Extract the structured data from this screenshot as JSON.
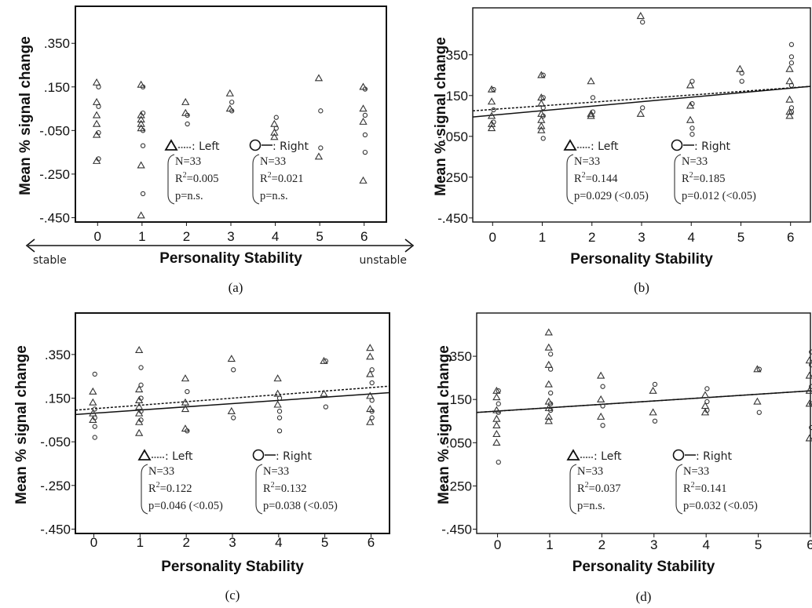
{
  "chart_data": [
    {
      "type": "scatter",
      "panel_label": "(a)",
      "xlabel": "Personality Stability",
      "ylabel": "Mean % signal change",
      "x_ticks": [
        "0",
        "1",
        "2",
        "3",
        "4",
        "5",
        "6"
      ],
      "y_ticks": [
        ".350",
        ".150",
        "-.050",
        "-.250",
        "-.450"
      ],
      "ylim": [
        -0.47,
        0.52
      ],
      "xlim": [
        -0.5,
        6.5
      ],
      "x_end_labels": {
        "left": "stable",
        "right": "unstable"
      },
      "double_arrow_x_axis": true,
      "legend": {
        "left": {
          "title": ": Left",
          "n": "N=33",
          "r2": "0.005",
          "p": "p=n.s."
        },
        "right": {
          "title": ": Right",
          "n": "N=33",
          "r2": "0.021",
          "p": "p=n.s."
        }
      },
      "series": [
        {
          "name": "Left",
          "marker": "triangle",
          "line": "dotted",
          "points": [
            [
              0,
              0.17
            ],
            [
              0,
              0.08
            ],
            [
              0,
              0.02
            ],
            [
              0,
              -0.02
            ],
            [
              0,
              -0.07
            ],
            [
              0,
              -0.19
            ],
            [
              1,
              0.16
            ],
            [
              1,
              0.02
            ],
            [
              1,
              0.0
            ],
            [
              1,
              -0.02
            ],
            [
              1,
              -0.04
            ],
            [
              1,
              -0.21
            ],
            [
              1,
              -0.44
            ],
            [
              2,
              0.08
            ],
            [
              2,
              0.03
            ],
            [
              3,
              0.12
            ],
            [
              3,
              0.05
            ],
            [
              4,
              -0.02
            ],
            [
              4,
              -0.06
            ],
            [
              4,
              -0.08
            ],
            [
              5,
              0.19
            ],
            [
              5,
              -0.17
            ],
            [
              6,
              0.15
            ],
            [
              6,
              0.05
            ],
            [
              6,
              -0.01
            ],
            [
              6,
              -0.28
            ]
          ]
        },
        {
          "name": "Right",
          "marker": "circle",
          "line": "solid",
          "points": [
            [
              0,
              0.15
            ],
            [
              0,
              0.06
            ],
            [
              0,
              -0.06
            ],
            [
              0,
              -0.18
            ],
            [
              1,
              0.15
            ],
            [
              1,
              0.03
            ],
            [
              1,
              -0.05
            ],
            [
              1,
              -0.12
            ],
            [
              1,
              -0.34
            ],
            [
              2,
              0.02
            ],
            [
              2,
              -0.02
            ],
            [
              3,
              0.08
            ],
            [
              3,
              0.04
            ],
            [
              4,
              0.01
            ],
            [
              4,
              -0.04
            ],
            [
              5,
              0.04
            ],
            [
              5,
              -0.13
            ],
            [
              6,
              0.14
            ],
            [
              6,
              0.02
            ],
            [
              6,
              -0.07
            ],
            [
              6,
              -0.15
            ]
          ]
        }
      ]
    },
    {
      "type": "scatter",
      "panel_label": "(b)",
      "xlabel": "Personality Stability",
      "ylabel": "Mean % signal change",
      "x_ticks": [
        "0",
        "1",
        "2",
        "3",
        "4",
        "5",
        "6"
      ],
      "y_ticks": [
        ".350",
        ".150",
        "-.050",
        "-.250",
        "-.450"
      ],
      "ylim": [
        -0.47,
        0.58
      ],
      "xlim": [
        -0.4,
        6.4
      ],
      "legend": {
        "left": {
          "title": ": Left",
          "n": "N=33",
          "r2": "0.144",
          "p": "p=0.029 (<0.05)"
        },
        "right": {
          "title": ": Right",
          "n": "N=33",
          "r2": "0.185",
          "p": "p=0.012 (<0.05)"
        }
      },
      "series": [
        {
          "name": "Left",
          "marker": "triangle",
          "line": "dotted",
          "fit": {
            "x0": -0.4,
            "y0": 0.075,
            "x1": 6.4,
            "y1": 0.195
          },
          "points": [
            [
              0,
              0.18
            ],
            [
              0,
              0.12
            ],
            [
              0,
              0.05
            ],
            [
              0,
              0.01
            ],
            [
              0,
              -0.01
            ],
            [
              1,
              0.25
            ],
            [
              1,
              0.14
            ],
            [
              1,
              0.11
            ],
            [
              1,
              0.06
            ],
            [
              1,
              0.03
            ],
            [
              1,
              0.0
            ],
            [
              1,
              -0.02
            ],
            [
              2,
              0.22
            ],
            [
              2,
              0.06
            ],
            [
              2,
              0.05
            ],
            [
              3,
              0.54
            ],
            [
              3,
              0.06
            ],
            [
              4,
              0.2
            ],
            [
              4,
              0.1
            ],
            [
              4,
              0.03
            ],
            [
              5,
              0.28
            ],
            [
              6,
              0.28
            ],
            [
              6,
              0.22
            ],
            [
              6,
              0.13
            ],
            [
              6,
              0.07
            ],
            [
              6,
              0.05
            ]
          ]
        },
        {
          "name": "Right",
          "marker": "circle",
          "line": "solid",
          "fit": {
            "x0": -0.4,
            "y0": 0.045,
            "x1": 6.4,
            "y1": 0.195
          },
          "points": [
            [
              0,
              0.18
            ],
            [
              0,
              0.08
            ],
            [
              0,
              0.02
            ],
            [
              1,
              0.25
            ],
            [
              1,
              0.14
            ],
            [
              1,
              0.09
            ],
            [
              1,
              0.05
            ],
            [
              1,
              -0.06
            ],
            [
              2,
              0.14
            ],
            [
              2,
              0.07
            ],
            [
              3,
              0.51
            ],
            [
              3,
              0.09
            ],
            [
              4,
              0.22
            ],
            [
              4,
              0.11
            ],
            [
              4,
              -0.01
            ],
            [
              4,
              -0.04
            ],
            [
              5,
              0.26
            ],
            [
              5,
              0.22
            ],
            [
              6,
              0.4
            ],
            [
              6,
              0.34
            ],
            [
              6,
              0.31
            ],
            [
              6,
              0.2
            ],
            [
              6,
              0.09
            ],
            [
              6,
              0.07
            ]
          ]
        }
      ]
    },
    {
      "type": "scatter",
      "panel_label": "(c)",
      "xlabel": "Personality Stability",
      "ylabel": "Mean % signal change",
      "x_ticks": [
        "0",
        "1",
        "2",
        "3",
        "4",
        "5",
        "6"
      ],
      "y_ticks": [
        ".350",
        ".150",
        "-.050",
        "-.250",
        "-.450"
      ],
      "ylim": [
        -0.47,
        0.54
      ],
      "xlim": [
        -0.4,
        6.4
      ],
      "legend": {
        "left": {
          "title": ": Left",
          "n": "N=33",
          "r2": "0.122",
          "p": "p=0.046 (<0.05)"
        },
        "right": {
          "title": ": Right",
          "n": "N=33",
          "r2": "0.132",
          "p": "p=0.038 (<0.05)"
        }
      },
      "series": [
        {
          "name": "Left",
          "marker": "triangle",
          "line": "dotted",
          "fit": {
            "x0": -0.4,
            "y0": 0.095,
            "x1": 6.4,
            "y1": 0.205
          },
          "points": [
            [
              0,
              0.18
            ],
            [
              0,
              0.13
            ],
            [
              0,
              0.08
            ],
            [
              0,
              0.05
            ],
            [
              1,
              0.37
            ],
            [
              1,
              0.19
            ],
            [
              1,
              0.14
            ],
            [
              1,
              0.11
            ],
            [
              1,
              0.08
            ],
            [
              1,
              0.04
            ],
            [
              1,
              -0.01
            ],
            [
              2,
              0.24
            ],
            [
              2,
              0.13
            ],
            [
              2,
              0.1
            ],
            [
              2,
              0.01
            ],
            [
              3,
              0.33
            ],
            [
              3,
              0.09
            ],
            [
              4,
              0.24
            ],
            [
              4,
              0.17
            ],
            [
              4,
              0.12
            ],
            [
              5,
              0.32
            ],
            [
              5,
              0.17
            ],
            [
              6,
              0.38
            ],
            [
              6,
              0.34
            ],
            [
              6,
              0.26
            ],
            [
              6,
              0.16
            ],
            [
              6,
              0.1
            ],
            [
              6,
              0.04
            ]
          ]
        },
        {
          "name": "Right",
          "marker": "circle",
          "line": "solid",
          "fit": {
            "x0": -0.4,
            "y0": 0.075,
            "x1": 6.4,
            "y1": 0.175
          },
          "points": [
            [
              0,
              0.26
            ],
            [
              0,
              0.1
            ],
            [
              0,
              0.06
            ],
            [
              0,
              0.02
            ],
            [
              0,
              -0.03
            ],
            [
              1,
              0.29
            ],
            [
              1,
              0.21
            ],
            [
              1,
              0.15
            ],
            [
              1,
              0.09
            ],
            [
              1,
              0.05
            ],
            [
              2,
              0.18
            ],
            [
              2,
              0.0
            ],
            [
              3,
              0.28
            ],
            [
              3,
              0.06
            ],
            [
              4,
              0.15
            ],
            [
              4,
              0.09
            ],
            [
              4,
              0.06
            ],
            [
              4,
              0.0
            ],
            [
              5,
              0.32
            ],
            [
              5,
              0.11
            ],
            [
              6,
              0.28
            ],
            [
              6,
              0.22
            ],
            [
              6,
              0.14
            ],
            [
              6,
              0.09
            ],
            [
              6,
              0.06
            ]
          ]
        }
      ]
    },
    {
      "type": "scatter",
      "panel_label": "(d)",
      "xlabel": "Personality Stability",
      "ylabel": "Mean % signal change",
      "x_ticks": [
        "0",
        "1",
        "2",
        "3",
        "4",
        "5",
        "6"
      ],
      "y_ticks": [
        ".350",
        ".150",
        "-.050",
        "-.250",
        "-.450"
      ],
      "ylim": [
        -0.47,
        0.55
      ],
      "xlim": [
        -0.4,
        6.0
      ],
      "legend": {
        "left": {
          "title": ": Left",
          "n": "N=33",
          "r2": "0.037",
          "p": "p=n.s."
        },
        "right": {
          "title": ": Right",
          "n": "N=33",
          "r2": "0.141",
          "p": "p=0.032 (<0.05)"
        }
      },
      "series": [
        {
          "name": "Left",
          "marker": "triangle",
          "line": "dotted",
          "fit": {
            "x0": -0.4,
            "y0": 0.09,
            "x1": 6.0,
            "y1": 0.19
          },
          "points": [
            [
              0,
              0.19
            ],
            [
              0,
              0.16
            ],
            [
              0,
              0.1
            ],
            [
              0,
              0.06
            ],
            [
              0,
              0.03
            ],
            [
              0,
              -0.01
            ],
            [
              0,
              -0.05
            ],
            [
              1,
              0.46
            ],
            [
              1,
              0.39
            ],
            [
              1,
              0.31
            ],
            [
              1,
              0.22
            ],
            [
              1,
              0.14
            ],
            [
              1,
              0.11
            ],
            [
              1,
              0.07
            ],
            [
              1,
              0.05
            ],
            [
              2,
              0.26
            ],
            [
              2,
              0.15
            ],
            [
              2,
              0.07
            ],
            [
              3,
              0.19
            ],
            [
              3,
              0.09
            ],
            [
              4,
              0.17
            ],
            [
              4,
              0.12
            ],
            [
              4,
              0.09
            ],
            [
              5,
              0.29
            ],
            [
              5,
              0.14
            ],
            [
              6,
              0.33
            ],
            [
              6,
              0.26
            ],
            [
              6,
              0.19
            ],
            [
              6,
              0.13
            ],
            [
              6,
              -0.03
            ]
          ]
        },
        {
          "name": "Right",
          "marker": "circle",
          "line": "solid",
          "fit": {
            "x0": -0.4,
            "y0": 0.09,
            "x1": 6.0,
            "y1": 0.19
          },
          "points": [
            [
              0,
              0.19
            ],
            [
              0,
              0.13
            ],
            [
              0,
              0.09
            ],
            [
              0,
              -0.14
            ],
            [
              1,
              0.36
            ],
            [
              1,
              0.29
            ],
            [
              1,
              0.18
            ],
            [
              1,
              0.13
            ],
            [
              1,
              0.1
            ],
            [
              2,
              0.21
            ],
            [
              2,
              0.12
            ],
            [
              2,
              0.03
            ],
            [
              3,
              0.22
            ],
            [
              3,
              0.05
            ],
            [
              4,
              0.2
            ],
            [
              4,
              0.14
            ],
            [
              4,
              0.1
            ],
            [
              5,
              0.29
            ],
            [
              5,
              0.09
            ],
            [
              6,
              0.37
            ],
            [
              6,
              0.31
            ],
            [
              6,
              0.21
            ],
            [
              6,
              0.13
            ],
            [
              6,
              0.02
            ]
          ]
        }
      ]
    }
  ]
}
